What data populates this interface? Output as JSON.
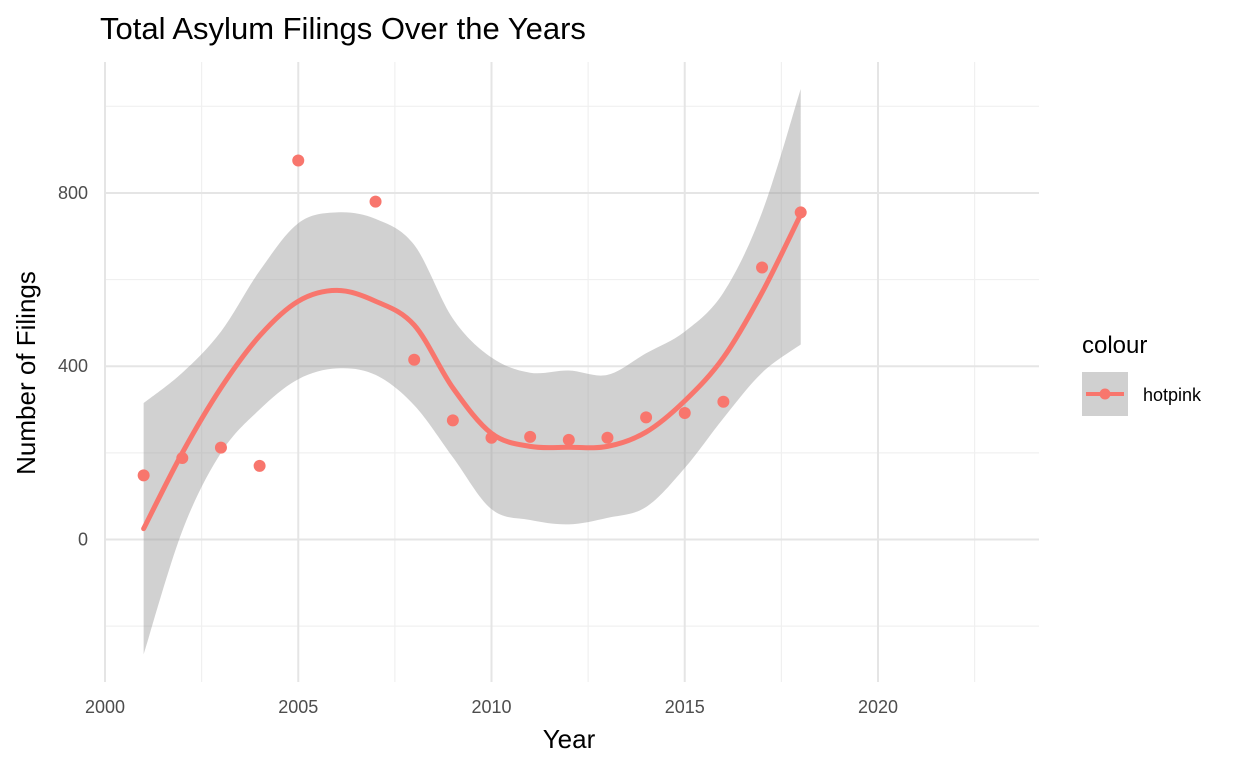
{
  "chart_data": {
    "type": "scatter",
    "title": "Total Asylum Filings Over the Years",
    "xlabel": "Year",
    "ylabel": "Number of Filings",
    "xlim": [
      2000,
      2024
    ],
    "ylim": [
      -330,
      1000
    ],
    "x_ticks": [
      2000,
      2005,
      2010,
      2015,
      2020
    ],
    "y_ticks": [
      0,
      400,
      800
    ],
    "x_tick_labels": [
      "2000",
      "2005",
      "2010",
      "2015",
      "2020"
    ],
    "y_tick_labels": [
      "0",
      "400",
      "800"
    ],
    "grid": true,
    "legend": {
      "title": "colour",
      "position": "right",
      "entries": [
        "hotpink"
      ]
    },
    "series": [
      {
        "name": "hotpink",
        "color": "#f8766d",
        "points": {
          "x": [
            2001,
            2002,
            2003,
            2004,
            2005,
            2007,
            2008,
            2009,
            2010,
            2011,
            2012,
            2013,
            2014,
            2015,
            2016,
            2017,
            2018
          ],
          "y": [
            148,
            188,
            212,
            170,
            875,
            780,
            415,
            275,
            235,
            237,
            230,
            235,
            282,
            292,
            318,
            628,
            755
          ]
        },
        "smooth": {
          "x": [
            2001,
            2002,
            2003,
            2004,
            2005,
            2006,
            2007,
            2008,
            2009,
            2010,
            2011,
            2012,
            2013,
            2014,
            2015,
            2016,
            2017,
            2018
          ],
          "y": [
            25,
            200,
            350,
            470,
            550,
            575,
            550,
            495,
            350,
            245,
            215,
            213,
            215,
            248,
            320,
            420,
            570,
            750
          ],
          "lower": [
            -265,
            20,
            200,
            300,
            370,
            395,
            380,
            310,
            190,
            70,
            45,
            35,
            50,
            75,
            165,
            280,
            385,
            450
          ],
          "upper": [
            315,
            385,
            480,
            620,
            730,
            755,
            740,
            680,
            510,
            420,
            385,
            390,
            380,
            430,
            480,
            570,
            755,
            1040
          ]
        }
      }
    ]
  }
}
